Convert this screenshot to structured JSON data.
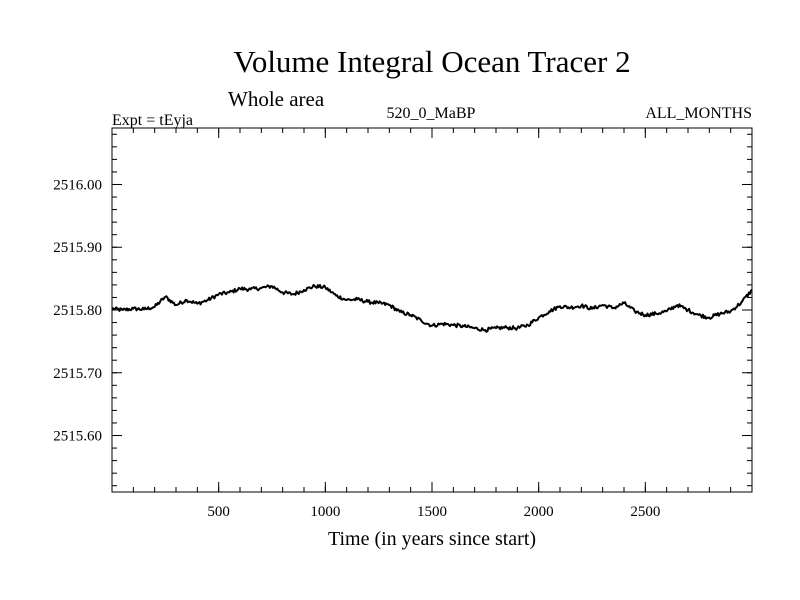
{
  "chart_data": {
    "type": "line",
    "title": "Volume Integral Ocean Tracer 2",
    "subtitle": "Whole area",
    "header_left": "Expt = tEyja",
    "header_center": "520_0_MaBP",
    "header_right": "ALL_MONTHS",
    "xlabel": "Time (in years since start)",
    "ylabel": "",
    "xlim": [
      0,
      3000
    ],
    "ylim": [
      2515.51,
      2516.09
    ],
    "x_ticks": [
      500,
      1000,
      1500,
      2000,
      2500
    ],
    "y_ticks": [
      "2516.00",
      "2515.90",
      "2515.80",
      "2515.70",
      "2515.60"
    ],
    "grid": false,
    "series": [
      {
        "name": "Ocean Tracer 2",
        "color": "#000000",
        "x": [
          0,
          50,
          100,
          150,
          200,
          250,
          300,
          350,
          400,
          450,
          500,
          550,
          600,
          650,
          700,
          750,
          800,
          850,
          900,
          950,
          1000,
          1050,
          1100,
          1150,
          1200,
          1250,
          1300,
          1350,
          1400,
          1450,
          1500,
          1550,
          1600,
          1650,
          1700,
          1750,
          1800,
          1850,
          1900,
          1950,
          2000,
          2050,
          2100,
          2150,
          2200,
          2250,
          2300,
          2350,
          2400,
          2450,
          2500,
          2550,
          2600,
          2650,
          2700,
          2750,
          2800,
          2850,
          2900,
          2950,
          3000
        ],
        "values": [
          2515.802,
          2515.8,
          2515.802,
          2515.801,
          2515.805,
          2515.821,
          2515.808,
          2515.816,
          2515.81,
          2515.816,
          2515.825,
          2515.828,
          2515.834,
          2515.833,
          2515.835,
          2515.838,
          2515.828,
          2515.825,
          2515.832,
          2515.838,
          2515.836,
          2515.823,
          2515.816,
          2515.817,
          2515.813,
          2515.811,
          2515.808,
          2515.797,
          2515.792,
          2515.783,
          2515.775,
          2515.778,
          2515.776,
          2515.774,
          2515.771,
          2515.768,
          2515.771,
          2515.772,
          2515.771,
          2515.776,
          2515.788,
          2515.798,
          2515.806,
          2515.804,
          2515.807,
          2515.802,
          2515.808,
          2515.803,
          2515.811,
          2515.798,
          2515.792,
          2515.794,
          2515.798,
          2515.808,
          2515.8,
          2515.792,
          2515.788,
          2515.794,
          2515.798,
          2515.812,
          2515.832
        ]
      }
    ]
  }
}
